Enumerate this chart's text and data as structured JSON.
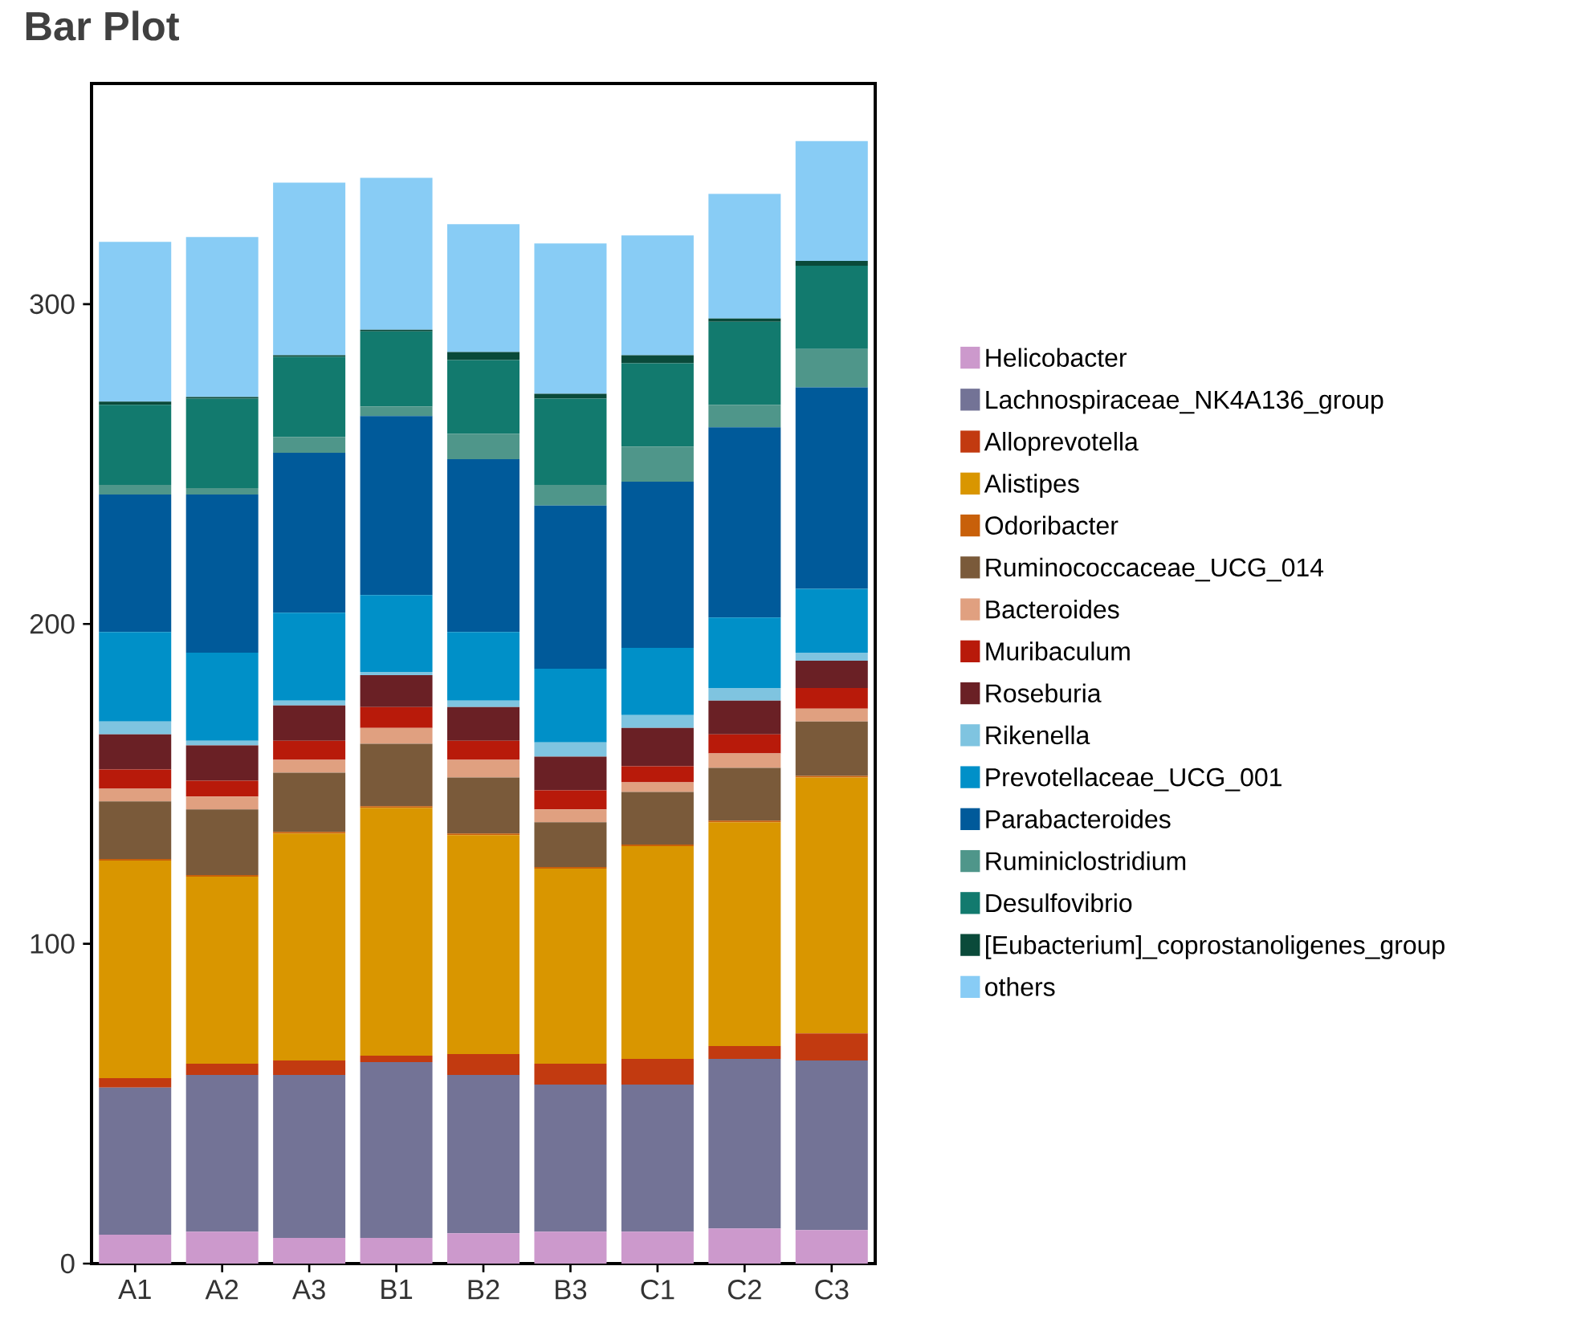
{
  "chart_data": {
    "type": "bar",
    "title": "Bar Plot",
    "stacked": true,
    "legend": "right",
    "categories": [
      "A1",
      "A2",
      "A3",
      "B1",
      "B2",
      "B3",
      "C1",
      "C2",
      "C3"
    ],
    "ylim": [
      0,
      369
    ],
    "yticks": [
      0,
      100,
      200,
      300
    ],
    "series": [
      {
        "name": "Helicobacter",
        "color": "#cc99cc",
        "values": [
          9,
          10,
          8,
          8,
          9.5,
          10,
          10,
          11,
          10.5
        ]
      },
      {
        "name": "Lachnospiraceae_NK4A136_group",
        "color": "#737396",
        "values": [
          46,
          49,
          51,
          55,
          49.5,
          46,
          46,
          53,
          53
        ]
      },
      {
        "name": "Alloprevotella",
        "color": "#c23a10",
        "values": [
          3,
          3.5,
          4.5,
          2,
          6.5,
          6.5,
          8,
          4,
          8.5
        ]
      },
      {
        "name": "Alistipes",
        "color": "#d99600",
        "values": [
          68,
          58.5,
          71,
          77.5,
          68.5,
          61,
          66.5,
          70,
          80
        ]
      },
      {
        "name": "Odoribacter",
        "color": "#c8600a",
        "values": [
          0.5,
          0.5,
          0.5,
          0.5,
          0.5,
          0.5,
          0.5,
          0.5,
          0.5
        ]
      },
      {
        "name": "Ruminococcaceae_UCG_014",
        "color": "#7a5a3a",
        "values": [
          18,
          20.5,
          18.5,
          19.5,
          17.5,
          14,
          16.5,
          16.5,
          17
        ]
      },
      {
        "name": "Bacteroides",
        "color": "#e0a080",
        "values": [
          4,
          4,
          4,
          5,
          5.5,
          4,
          3,
          4.5,
          4
        ]
      },
      {
        "name": "Muribaculum",
        "color": "#b81a0a",
        "values": [
          6,
          5,
          6,
          6.5,
          6,
          6,
          5,
          6,
          6.5
        ]
      },
      {
        "name": "Roseburia",
        "color": "#6a2025",
        "values": [
          11,
          11,
          11,
          10,
          10.5,
          10.5,
          12,
          10.5,
          8.5
        ]
      },
      {
        "name": "Rikenella",
        "color": "#7fc4e0",
        "values": [
          4,
          1.5,
          1.5,
          1,
          2,
          4.5,
          4,
          4,
          2.5
        ]
      },
      {
        "name": "Prevotellaceae_UCG_001",
        "color": "#0090c8",
        "values": [
          28,
          27.5,
          27.5,
          24,
          21.5,
          23,
          21,
          22,
          20
        ]
      },
      {
        "name": "Parabacteroides",
        "color": "#005a9a",
        "values": [
          43,
          49.5,
          50,
          56,
          54,
          51,
          52,
          59.5,
          63
        ]
      },
      {
        "name": "Ruminiclostridium",
        "color": "#4f968a",
        "values": [
          3,
          2,
          5,
          3,
          8,
          6.5,
          11,
          7,
          12
        ]
      },
      {
        "name": "Desulfovibrio",
        "color": "#127a6e",
        "values": [
          25,
          28,
          25,
          23.5,
          23,
          27,
          26,
          26,
          26
        ]
      },
      {
        "name": "[Eubacterium]_coprostanoligenes_group",
        "color": "#0a4a3a",
        "values": [
          1,
          0.5,
          0.5,
          0.5,
          2.5,
          1.5,
          2.5,
          1,
          1.5
        ]
      },
      {
        "name": "others",
        "color": "#88ccf5",
        "values": [
          50,
          50,
          54,
          47.5,
          40,
          47,
          37.5,
          39,
          37.5
        ]
      }
    ]
  }
}
